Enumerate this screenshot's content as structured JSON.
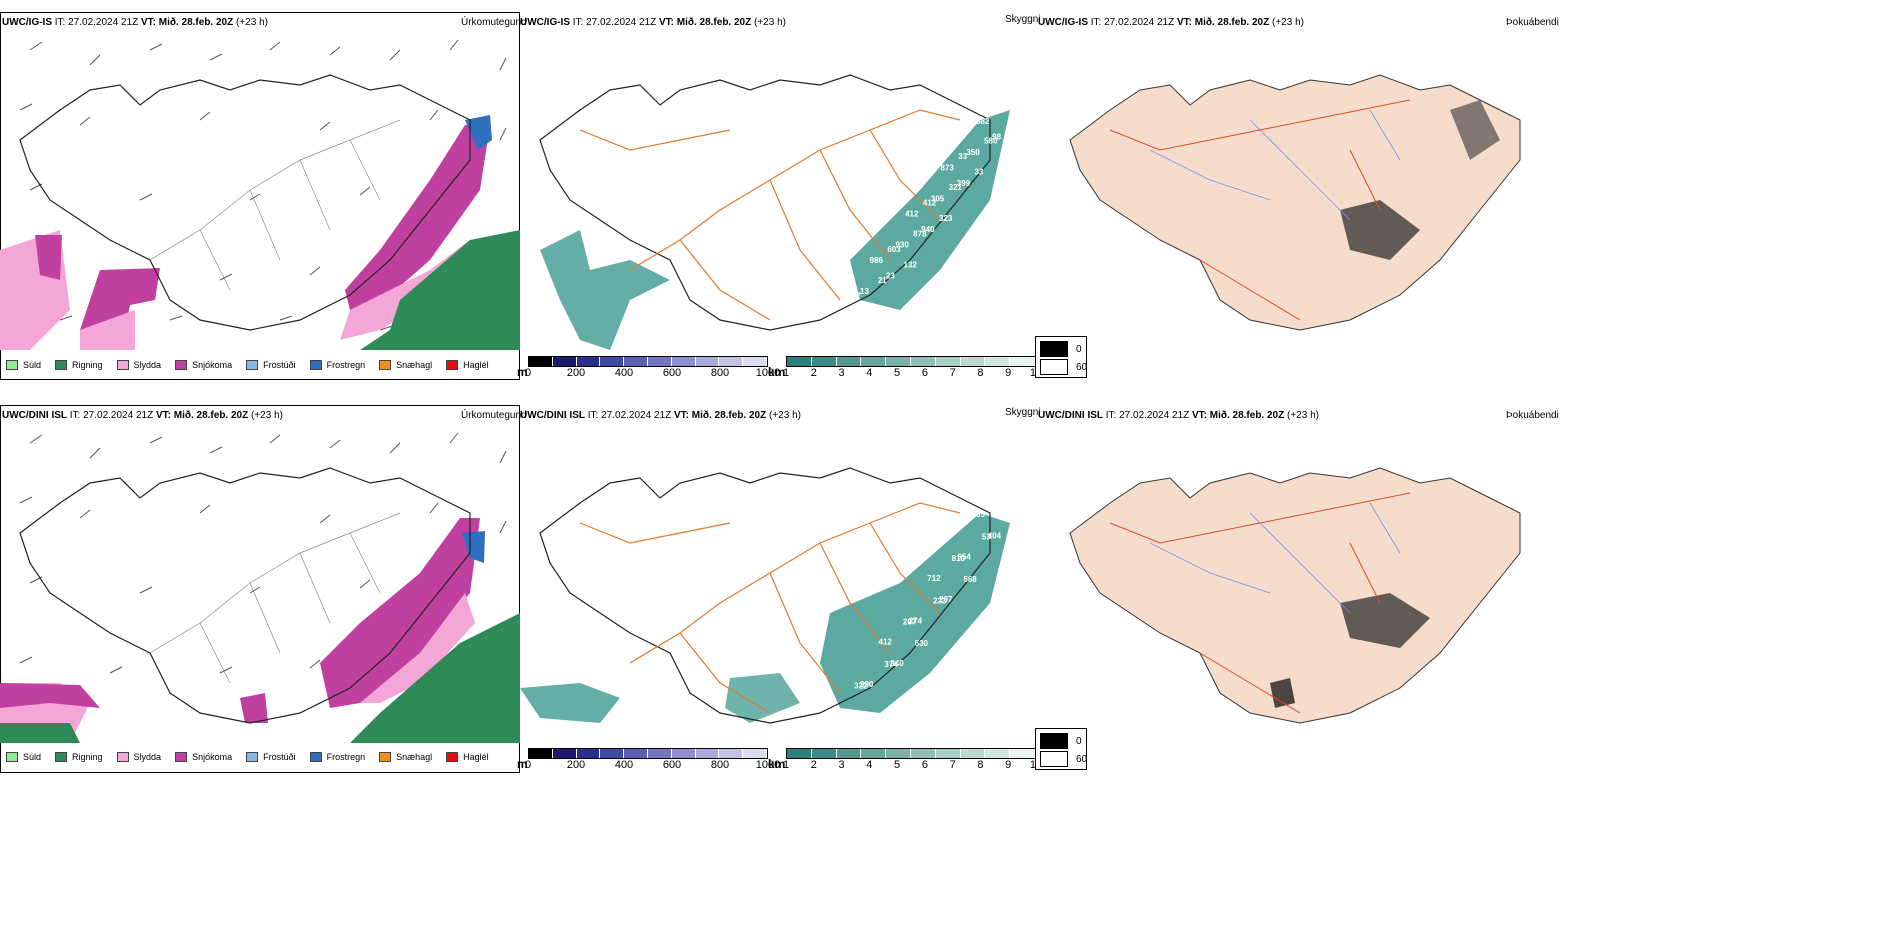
{
  "rows": [
    {
      "model": "UWC/IG-IS",
      "init": "IT: 27.02.2024 21Z",
      "valid_label": "VT:",
      "valid": "Mið. 28.feb. 20Z",
      "lead": "(+23 h)",
      "labels_mid": [
        "582",
        "580",
        "98",
        "33",
        "350",
        "33",
        "873",
        "321",
        "399",
        "412",
        "305",
        "323",
        "412",
        "878",
        "940",
        "603",
        "930",
        "132",
        "986",
        "21",
        "23",
        "77",
        "13"
      ],
      "labels_mid_kind": "top"
    },
    {
      "model": "UWC/DINI ISL",
      "init": "IT: 27.02.2024 21Z",
      "valid_label": "VT:",
      "valid": "Mið. 28.feb. 20Z",
      "lead": "(+23 h)",
      "labels_mid": [
        "05",
        "53",
        "404",
        "810",
        "654",
        "568",
        "712",
        "223",
        "207",
        "207",
        "274",
        "630",
        "412",
        "374",
        "840",
        "322",
        "990"
      ],
      "labels_mid_kind": "bottom"
    }
  ],
  "titles": {
    "precip_type": "Úrkomutegund",
    "ceiling": "Skyggni",
    "fog": "Þokuábendi"
  },
  "precip_legend": [
    {
      "label": "Súld",
      "color": "#90ee90"
    },
    {
      "label": "Rigning",
      "color": "#2e8b57"
    },
    {
      "label": "Slydda",
      "color": "#f4a6d7"
    },
    {
      "label": "Snjókoma",
      "color": "#c040a0"
    },
    {
      "label": "Frostúði",
      "color": "#87b9ee"
    },
    {
      "label": "Frostregn",
      "color": "#2e6fbf"
    },
    {
      "label": "Snæhagl",
      "color": "#f0931e"
    },
    {
      "label": "Haglél",
      "color": "#e01010"
    }
  ],
  "ceiling_scale": {
    "unit": "m",
    "ticks": [
      "0",
      "200",
      "400",
      "600",
      "800",
      "1000"
    ],
    "colors": [
      "#000000",
      "#1a1a6e",
      "#27308e",
      "#3f4aa3",
      "#5a5fb3",
      "#7377c2",
      "#8f90cf",
      "#aaaadb",
      "#c3c3e6",
      "#dcdcf0"
    ]
  },
  "visibility_scale": {
    "unit": "km",
    "ticks": [
      "1",
      "2",
      "3",
      "4",
      "5",
      "6",
      "7",
      "8",
      "9",
      "10"
    ],
    "colors": [
      "#2a7f7a",
      "#3d8c87",
      "#52998f",
      "#66a69c",
      "#7bb3a9",
      "#90c0b6",
      "#a6cdc3",
      "#bcdad1",
      "#d2e7df",
      "#e8f3ee"
    ]
  },
  "fog_legend": [
    {
      "label": "0",
      "color": "#000000"
    },
    {
      "label": "60",
      "color": "#ffffff"
    }
  ],
  "colors": {
    "snow": "#c040a0",
    "sleet": "#f4a6d7",
    "rain": "#2e8b57",
    "frzrain": "#2e6fbf",
    "road": "#e07a2a",
    "land_fog": "#f5dccb",
    "vis": "#3f9a92"
  }
}
